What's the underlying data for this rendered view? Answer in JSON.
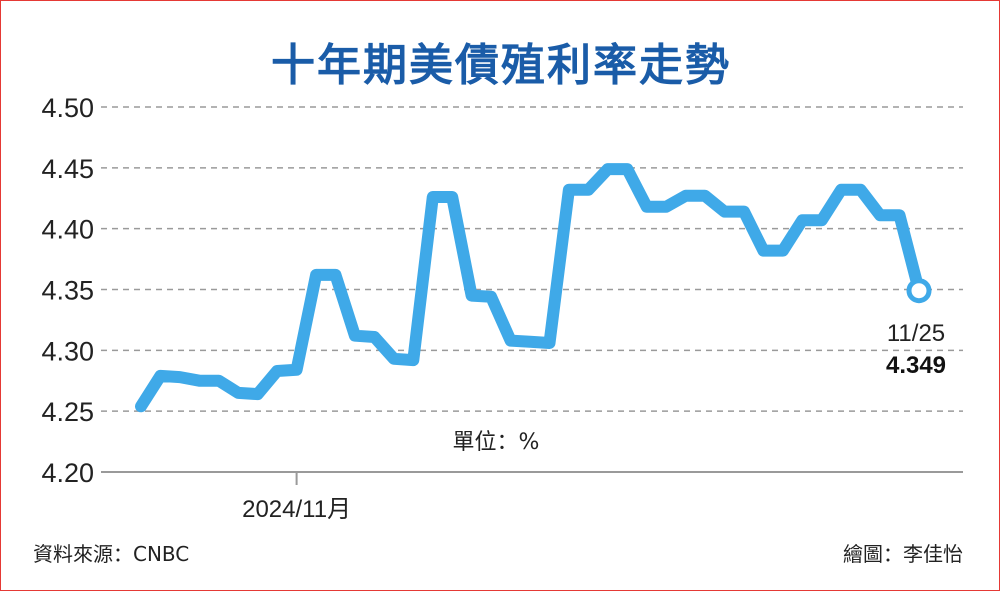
{
  "chart_data": {
    "type": "line",
    "title": "十年期美債殖利率走勢",
    "unit_label": "單位：%",
    "ylim": [
      4.2,
      4.5
    ],
    "yticks": [
      "4.50",
      "4.45",
      "4.40",
      "4.35",
      "4.30",
      "4.25",
      "4.20"
    ],
    "x_tick_label": "2024/11月",
    "grid": true,
    "series_color": "#3fa9e8",
    "values": [
      4.254,
      4.279,
      4.278,
      4.275,
      4.275,
      4.265,
      4.264,
      4.283,
      4.284,
      4.362,
      4.362,
      4.312,
      4.311,
      4.293,
      4.292,
      4.426,
      4.426,
      4.345,
      4.344,
      4.308,
      4.307,
      4.306,
      4.432,
      4.432,
      4.449,
      4.449,
      4.418,
      4.418,
      4.427,
      4.427,
      4.414,
      4.414,
      4.382,
      4.382,
      4.407,
      4.407,
      4.432,
      4.432,
      4.411,
      4.411,
      4.349
    ],
    "x_tick_index": 8,
    "end_annotation": {
      "date": "11/25",
      "value": "4.349"
    }
  },
  "footer": {
    "source": "資料來源：CNBC",
    "credit": "繪圖：李佳怡"
  }
}
